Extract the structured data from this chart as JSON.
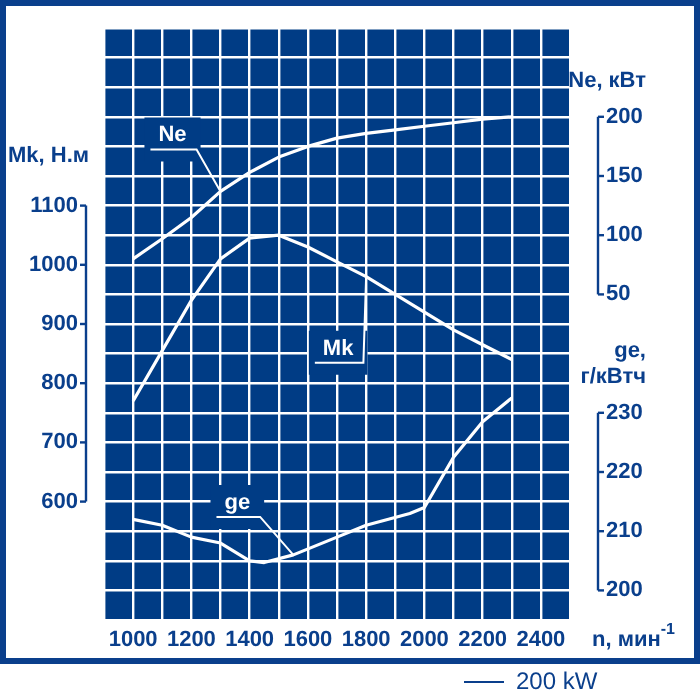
{
  "chart_data": {
    "type": "line",
    "xlabel": "n, мин$^{-1}$",
    "ylabel": "Mk, Н.м",
    "y2label": "Ne, кВт",
    "y3label": "ge, г/кВтч",
    "xlim": [
      900,
      2500
    ],
    "xticks": [
      {
        "value": 900,
        "label": null
      },
      1000,
      {
        "value": 1100,
        "label": null
      },
      1200,
      {
        "value": 1300,
        "label": null
      },
      1400,
      {
        "value": 1500,
        "label": null
      },
      1600,
      {
        "value": 1700,
        "label": null
      },
      1800,
      {
        "value": 1900,
        "label": null
      },
      2000,
      {
        "value": 2100,
        "label": null
      },
      2200,
      {
        "value": 2300,
        "label": null
      },
      2400,
      {
        "value": 2500,
        "label": null
      }
    ],
    "ylim": [
      400,
      1400
    ],
    "yticks": [
      {
        "value": 400,
        "label": null
      },
      {
        "value": 450,
        "label": null
      },
      {
        "value": 500,
        "label": null
      },
      {
        "value": 550,
        "label": null
      },
      600,
      {
        "value": 650,
        "label": null
      },
      700,
      {
        "value": 750,
        "label": null
      },
      800,
      {
        "value": 850,
        "label": null
      },
      900,
      {
        "value": 950,
        "label": null
      },
      1000,
      {
        "value": 1050,
        "label": null
      },
      1100,
      {
        "value": 1150,
        "label": null
      },
      {
        "value": 1200,
        "label": null
      },
      {
        "value": 1250,
        "label": null
      },
      {
        "value": 1300,
        "label": null
      },
      {
        "value": 1350,
        "label": null
      },
      {
        "value": 1400,
        "label": null
      }
    ],
    "y2lim": [
      -225,
      275
    ],
    "y2ticks": [
      50,
      100,
      150,
      200
    ],
    "y3lim": [
      195,
      295
    ],
    "y3ticks": [
      200,
      210,
      220,
      230
    ],
    "grid": true,
    "marker": "none",
    "annotations": [
      "200 kW"
    ],
    "series": [
      {
        "name": "Ne",
        "color": "#ffffff",
        "axis": "y2",
        "x": [
          1000,
          1100,
          1200,
          1300,
          1400,
          1500,
          1600,
          1700,
          1800,
          1900,
          2000,
          2100,
          2200,
          2300
        ],
        "values": [
          80,
          97,
          115,
          137,
          153,
          166,
          175,
          182,
          186,
          189,
          192,
          195,
          198,
          200
        ]
      },
      {
        "name": "Mk",
        "color": "#ffffff",
        "x": [
          1000,
          1100,
          1200,
          1300,
          1400,
          1500,
          1600,
          1700,
          1800,
          1900,
          2000,
          2100,
          2200,
          2300
        ],
        "values": [
          770,
          855,
          940,
          1010,
          1045,
          1050,
          1030,
          1005,
          980,
          950,
          920,
          890,
          865,
          840
        ]
      },
      {
        "name": "ge",
        "color": "#ffffff",
        "axis": "y3",
        "x": [
          1000,
          1100,
          1200,
          1300,
          1400,
          1450,
          1550,
          1700,
          1800,
          1950,
          2000,
          2100,
          2200,
          2300
        ],
        "values": [
          212,
          211,
          209,
          208,
          205,
          204.7,
          206,
          209,
          211,
          213,
          214,
          222.5,
          228.5,
          232.5
        ]
      }
    ]
  }
}
